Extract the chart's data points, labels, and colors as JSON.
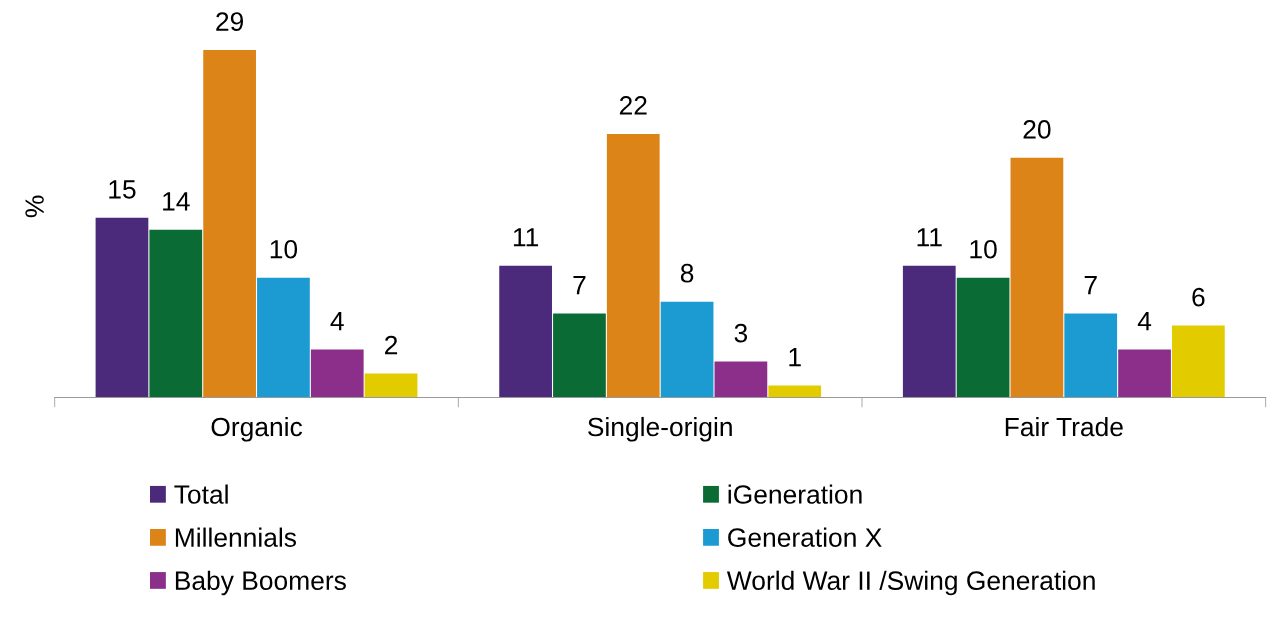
{
  "chart_data": {
    "type": "bar",
    "ylabel": "%",
    "categories": [
      "Organic",
      "Single-origin",
      "Fair Trade"
    ],
    "series": [
      {
        "name": "Total",
        "color": "#4b2a7b",
        "values": [
          15,
          11,
          11
        ]
      },
      {
        "name": "iGeneration",
        "color": "#0b6b35",
        "values": [
          14,
          7,
          10
        ]
      },
      {
        "name": "Millennials",
        "color": "#dc8418",
        "values": [
          29,
          22,
          20
        ]
      },
      {
        "name": "Generation X",
        "color": "#1b9bd1",
        "values": [
          10,
          8,
          7
        ]
      },
      {
        "name": "Baby Boomers",
        "color": "#8c2f8a",
        "values": [
          4,
          3,
          4
        ]
      },
      {
        "name": "World War II /Swing Generation",
        "color": "#e2cc00",
        "values": [
          2,
          1,
          6
        ]
      }
    ],
    "data_labels": true,
    "tick_labels": "x",
    "grid": false,
    "legend": "bottom"
  }
}
